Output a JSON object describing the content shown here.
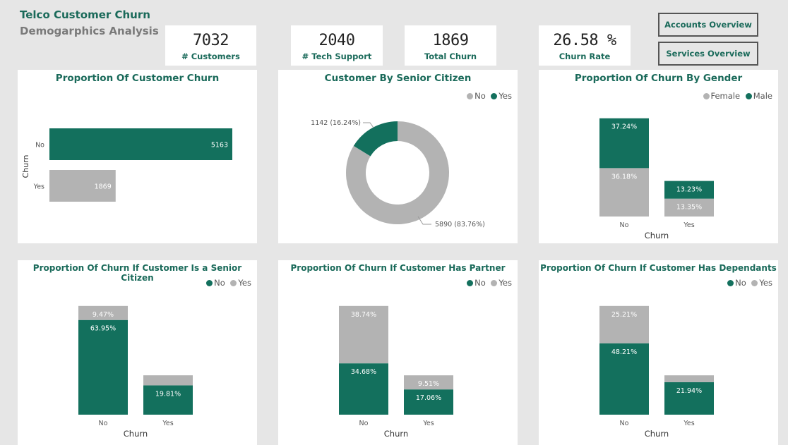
{
  "header": {
    "title": "Telco Customer Churn",
    "subtitle": "Demogarphics Analysis"
  },
  "kpis": [
    {
      "value": "7032",
      "label": "# Customers"
    },
    {
      "value": "2040",
      "label": "# Tech Support"
    },
    {
      "value": "1869",
      "label": "Total Churn"
    },
    {
      "value": "26.58 %",
      "label": "Churn Rate"
    }
  ],
  "nav": {
    "accounts": "Accounts Overview",
    "services": "Services Overview"
  },
  "colors": {
    "primary": "#13705d",
    "secondary": "#b3b3b3",
    "title": "#1a6a5a"
  },
  "chart_data": [
    {
      "type": "bar",
      "orientation": "horizontal",
      "title": "Proportion Of Customer Churn",
      "ylabel": "Churn",
      "categories": [
        "No",
        "Yes"
      ],
      "values": [
        5163,
        1869
      ],
      "labels": [
        "5163",
        "1869"
      ],
      "colors": [
        "#13705d",
        "#b3b3b3"
      ]
    },
    {
      "type": "pie",
      "donut": true,
      "title": "Customer By Senior Citizen",
      "legend": [
        "No",
        "Yes"
      ],
      "slices": [
        {
          "name": "No",
          "value": 5890,
          "label": "5890 (83.76%)",
          "color": "#b3b3b3"
        },
        {
          "name": "Yes",
          "value": 1142,
          "label": "1142 (16.24%)",
          "color": "#13705d"
        }
      ]
    },
    {
      "type": "bar",
      "stacked": true,
      "title": "Proportion Of Churn By Gender",
      "xlabel": "Churn",
      "categories": [
        "No",
        "Yes"
      ],
      "series": [
        {
          "name": "Female",
          "values": [
            36.18,
            13.35
          ],
          "labels": [
            "36.18%",
            "13.35%"
          ],
          "color": "#b3b3b3"
        },
        {
          "name": "Male",
          "values": [
            37.24,
            13.23
          ],
          "labels": [
            "37.24%",
            "13.23%"
          ],
          "color": "#13705d"
        }
      ]
    },
    {
      "type": "bar",
      "stacked": true,
      "title": "Proportion Of Churn If Customer Is a Senior Citizen",
      "xlabel": "Churn",
      "categories": [
        "No",
        "Yes"
      ],
      "series": [
        {
          "name": "No",
          "values": [
            63.95,
            19.81
          ],
          "labels": [
            "63.95%",
            "19.81%"
          ],
          "color": "#13705d"
        },
        {
          "name": "Yes",
          "values": [
            9.47,
            6.77
          ],
          "labels": [
            "9.47%",
            ""
          ],
          "color": "#b3b3b3"
        }
      ]
    },
    {
      "type": "bar",
      "stacked": true,
      "title": "Proportion Of Churn If Customer Has Partner",
      "xlabel": "Churn",
      "categories": [
        "No",
        "Yes"
      ],
      "series": [
        {
          "name": "No",
          "values": [
            34.68,
            17.06
          ],
          "labels": [
            "34.68%",
            "17.06%"
          ],
          "color": "#13705d"
        },
        {
          "name": "Yes",
          "values": [
            38.74,
            9.51
          ],
          "labels": [
            "38.74%",
            "9.51%"
          ],
          "color": "#b3b3b3"
        }
      ]
    },
    {
      "type": "bar",
      "stacked": true,
      "title": "Proportion Of Churn If Customer Has Dependants",
      "xlabel": "Churn",
      "categories": [
        "No",
        "Yes"
      ],
      "series": [
        {
          "name": "No",
          "values": [
            48.21,
            21.94
          ],
          "labels": [
            "48.21%",
            "21.94%"
          ],
          "color": "#13705d"
        },
        {
          "name": "Yes",
          "values": [
            25.21,
            4.63
          ],
          "labels": [
            "25.21%",
            ""
          ],
          "color": "#b3b3b3"
        }
      ]
    }
  ]
}
